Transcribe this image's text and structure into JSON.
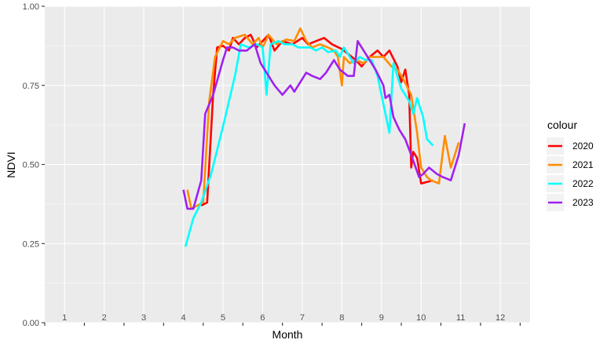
{
  "chart_data": {
    "type": "line",
    "xlabel": "Month",
    "ylabel": "NDVI",
    "xlim": [
      0.5,
      12.75
    ],
    "ylim": [
      0,
      1
    ],
    "x_ticks": [
      1,
      2,
      3,
      4,
      5,
      6,
      7,
      8,
      9,
      10,
      11,
      12
    ],
    "y_ticks": [
      0.0,
      0.25,
      0.5,
      0.75,
      1.0
    ],
    "y_tick_labels": [
      "0.00",
      "0.25",
      "0.50",
      "0.75",
      "1.00"
    ],
    "grid": true,
    "legend": {
      "title": "colour",
      "position": "right"
    },
    "series": [
      {
        "name": "2020",
        "color": "#ff0000",
        "points": [
          [
            4.45,
            0.37
          ],
          [
            4.6,
            0.38
          ],
          [
            4.75,
            0.72
          ],
          [
            4.85,
            0.87
          ],
          [
            5.0,
            0.875
          ],
          [
            5.15,
            0.86
          ],
          [
            5.25,
            0.9
          ],
          [
            5.4,
            0.88
          ],
          [
            5.55,
            0.9
          ],
          [
            5.7,
            0.91
          ],
          [
            5.85,
            0.87
          ],
          [
            6.0,
            0.89
          ],
          [
            6.15,
            0.91
          ],
          [
            6.3,
            0.86
          ],
          [
            6.5,
            0.89
          ],
          [
            6.75,
            0.88
          ],
          [
            7.0,
            0.9
          ],
          [
            7.15,
            0.88
          ],
          [
            7.35,
            0.89
          ],
          [
            7.55,
            0.9
          ],
          [
            7.75,
            0.88
          ],
          [
            8.0,
            0.865
          ],
          [
            8.15,
            0.85
          ],
          [
            8.35,
            0.83
          ],
          [
            8.5,
            0.81
          ],
          [
            8.7,
            0.84
          ],
          [
            8.9,
            0.86
          ],
          [
            9.05,
            0.84
          ],
          [
            9.2,
            0.86
          ],
          [
            9.4,
            0.81
          ],
          [
            9.5,
            0.76
          ],
          [
            9.6,
            0.8
          ],
          [
            9.7,
            0.72
          ],
          [
            9.75,
            0.49
          ],
          [
            9.8,
            0.54
          ],
          [
            9.9,
            0.52
          ],
          [
            10.0,
            0.44
          ],
          [
            10.3,
            0.45
          ]
        ]
      },
      {
        "name": "2021",
        "color": "#ff8c00",
        "points": [
          [
            4.1,
            0.42
          ],
          [
            4.2,
            0.36
          ],
          [
            4.35,
            0.37
          ],
          [
            4.5,
            0.38
          ],
          [
            4.65,
            0.7
          ],
          [
            4.8,
            0.84
          ],
          [
            5.0,
            0.89
          ],
          [
            5.15,
            0.88
          ],
          [
            5.3,
            0.9
          ],
          [
            5.55,
            0.91
          ],
          [
            5.75,
            0.88
          ],
          [
            5.9,
            0.9
          ],
          [
            6.0,
            0.87
          ],
          [
            6.15,
            0.91
          ],
          [
            6.35,
            0.88
          ],
          [
            6.6,
            0.895
          ],
          [
            6.8,
            0.89
          ],
          [
            6.95,
            0.93
          ],
          [
            7.1,
            0.89
          ],
          [
            7.25,
            0.87
          ],
          [
            7.45,
            0.88
          ],
          [
            7.65,
            0.87
          ],
          [
            7.8,
            0.86
          ],
          [
            7.9,
            0.84
          ],
          [
            8.0,
            0.75
          ],
          [
            8.05,
            0.84
          ],
          [
            8.2,
            0.82
          ],
          [
            8.35,
            0.83
          ],
          [
            8.55,
            0.82
          ],
          [
            8.7,
            0.84
          ],
          [
            8.9,
            0.84
          ],
          [
            9.05,
            0.84
          ],
          [
            9.25,
            0.81
          ],
          [
            9.4,
            0.8
          ],
          [
            9.55,
            0.77
          ],
          [
            9.75,
            0.72
          ],
          [
            9.9,
            0.6
          ],
          [
            10.0,
            0.49
          ],
          [
            10.15,
            0.46
          ],
          [
            10.25,
            0.45
          ],
          [
            10.45,
            0.44
          ],
          [
            10.6,
            0.59
          ],
          [
            10.75,
            0.49
          ],
          [
            10.95,
            0.57
          ]
        ]
      },
      {
        "name": "2022",
        "color": "#00ffff",
        "points": [
          [
            4.05,
            0.24
          ],
          [
            4.25,
            0.33
          ],
          [
            4.45,
            0.38
          ],
          [
            4.7,
            0.47
          ],
          [
            5.0,
            0.62
          ],
          [
            5.3,
            0.78
          ],
          [
            5.45,
            0.88
          ],
          [
            5.65,
            0.87
          ],
          [
            5.85,
            0.88
          ],
          [
            6.0,
            0.87
          ],
          [
            6.1,
            0.72
          ],
          [
            6.2,
            0.88
          ],
          [
            6.4,
            0.89
          ],
          [
            6.55,
            0.88
          ],
          [
            6.75,
            0.88
          ],
          [
            6.9,
            0.87
          ],
          [
            7.05,
            0.87
          ],
          [
            7.2,
            0.87
          ],
          [
            7.35,
            0.86
          ],
          [
            7.5,
            0.87
          ],
          [
            7.65,
            0.855
          ],
          [
            7.85,
            0.86
          ],
          [
            7.95,
            0.84
          ],
          [
            8.05,
            0.87
          ],
          [
            8.15,
            0.85
          ],
          [
            8.3,
            0.82
          ],
          [
            8.45,
            0.84
          ],
          [
            8.6,
            0.83
          ],
          [
            8.75,
            0.83
          ],
          [
            8.9,
            0.78
          ],
          [
            9.05,
            0.69
          ],
          [
            9.2,
            0.6
          ],
          [
            9.3,
            0.82
          ],
          [
            9.5,
            0.74
          ],
          [
            9.7,
            0.7
          ],
          [
            9.8,
            0.66
          ],
          [
            9.9,
            0.71
          ],
          [
            10.05,
            0.65
          ],
          [
            10.15,
            0.58
          ],
          [
            10.3,
            0.56
          ]
        ]
      },
      {
        "name": "2023",
        "color": "#a020f0",
        "points": [
          [
            4.0,
            0.42
          ],
          [
            4.1,
            0.36
          ],
          [
            4.25,
            0.36
          ],
          [
            4.45,
            0.45
          ],
          [
            4.55,
            0.66
          ],
          [
            4.75,
            0.72
          ],
          [
            5.0,
            0.83
          ],
          [
            5.1,
            0.87
          ],
          [
            5.25,
            0.87
          ],
          [
            5.4,
            0.86
          ],
          [
            5.6,
            0.86
          ],
          [
            5.8,
            0.88
          ],
          [
            5.95,
            0.82
          ],
          [
            6.15,
            0.78
          ],
          [
            6.3,
            0.75
          ],
          [
            6.5,
            0.72
          ],
          [
            6.7,
            0.75
          ],
          [
            6.8,
            0.73
          ],
          [
            6.95,
            0.76
          ],
          [
            7.1,
            0.79
          ],
          [
            7.25,
            0.78
          ],
          [
            7.45,
            0.77
          ],
          [
            7.6,
            0.79
          ],
          [
            7.8,
            0.83
          ],
          [
            7.95,
            0.8
          ],
          [
            8.15,
            0.78
          ],
          [
            8.3,
            0.78
          ],
          [
            8.4,
            0.89
          ],
          [
            8.6,
            0.85
          ],
          [
            8.85,
            0.8
          ],
          [
            9.05,
            0.75
          ],
          [
            9.1,
            0.71
          ],
          [
            9.2,
            0.72
          ],
          [
            9.3,
            0.65
          ],
          [
            9.45,
            0.61
          ],
          [
            9.6,
            0.58
          ],
          [
            9.75,
            0.53
          ],
          [
            9.95,
            0.46
          ],
          [
            10.05,
            0.47
          ],
          [
            10.2,
            0.49
          ],
          [
            10.4,
            0.47
          ],
          [
            10.55,
            0.46
          ],
          [
            10.75,
            0.45
          ],
          [
            10.95,
            0.53
          ],
          [
            11.1,
            0.63
          ]
        ]
      }
    ]
  }
}
